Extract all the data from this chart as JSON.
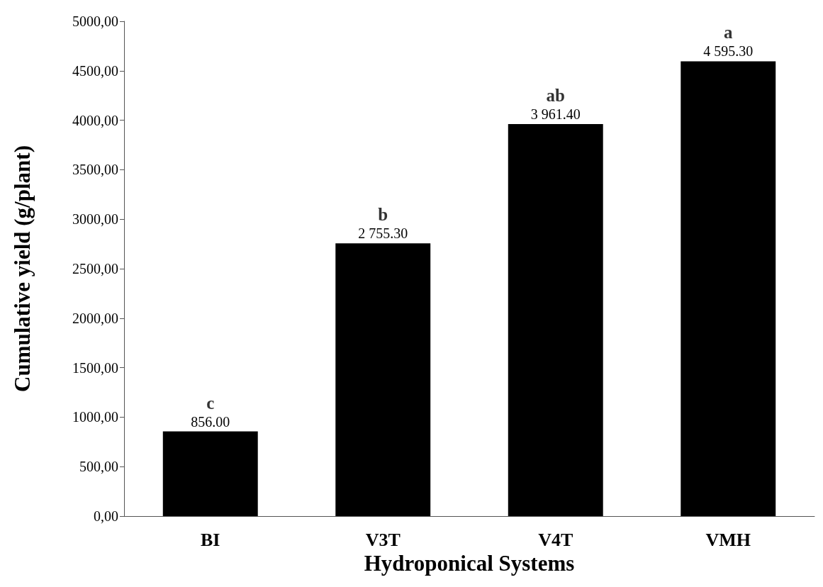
{
  "chart_data": {
    "type": "bar",
    "xlabel": "Hydroponical Systems",
    "ylabel": "Cumulative yield (g/plant)",
    "categories": [
      "BI",
      "V3T",
      "V4T",
      "VMH"
    ],
    "values": [
      856.0,
      2755.3,
      3961.4,
      4595.3
    ],
    "value_labels": [
      "856.00",
      "2 755.30",
      "3 961.40",
      "4 595.30"
    ],
    "color": "#000000",
    "ylim": [
      0,
      5000
    ],
    "yticks": [
      {
        "value": 0,
        "label": "0,00"
      },
      {
        "value": 500,
        "label": "500,00"
      },
      {
        "value": 1000,
        "label": "1000,00"
      },
      {
        "value": 1500,
        "label": "1500,00"
      },
      {
        "value": 2000,
        "label": "2000,00"
      },
      {
        "value": 2500,
        "label": "2500,00"
      },
      {
        "value": 3000,
        "label": "3000,00"
      },
      {
        "value": 3500,
        "label": "3500,00"
      },
      {
        "value": 4000,
        "label": "4000,00"
      },
      {
        "value": 4500,
        "label": "4500,00"
      },
      {
        "value": 5000,
        "label": "5000,00"
      }
    ],
    "annotations": [
      {
        "text": "c",
        "x": "BI",
        "y": 856.0
      },
      {
        "text": "b",
        "x": "V3T",
        "y": 2755.3
      },
      {
        "text": "ab",
        "x": "V4T",
        "y": 3961.4
      },
      {
        "text": "a",
        "x": "VMH",
        "y": 4595.3
      }
    ],
    "grid": false
  }
}
